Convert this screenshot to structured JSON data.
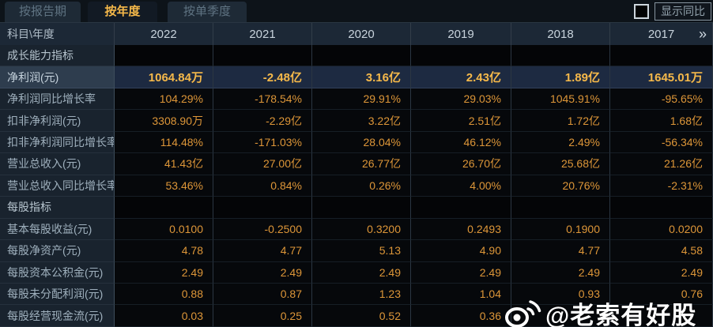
{
  "tabs": [
    {
      "label": "按报告期",
      "active": false
    },
    {
      "label": "按年度",
      "active": true
    },
    {
      "label": "按单季度",
      "active": false
    }
  ],
  "controls": {
    "show_yoy_label": "显示同比",
    "yoy_checkbox_checked": false
  },
  "table": {
    "corner_label": "科目\\年度",
    "years": [
      "2022",
      "2021",
      "2020",
      "2019",
      "2018",
      "2017"
    ],
    "more_icon": "»",
    "rows": [
      {
        "type": "section",
        "label": "成长能力指标",
        "values": [
          "",
          "",
          "",
          "",
          "",
          ""
        ]
      },
      {
        "type": "data",
        "label": "净利润(元)",
        "highlight": true,
        "values": [
          "1064.84万",
          "-2.48亿",
          "3.16亿",
          "2.43亿",
          "1.89亿",
          "1645.01万"
        ]
      },
      {
        "type": "data",
        "label": "净利润同比增长率",
        "values": [
          "104.29%",
          "-178.54%",
          "29.91%",
          "29.03%",
          "1045.91%",
          "-95.65%"
        ]
      },
      {
        "type": "data",
        "label": "扣非净利润(元)",
        "values": [
          "3308.90万",
          "-2.29亿",
          "3.22亿",
          "2.51亿",
          "1.72亿",
          "1.68亿"
        ]
      },
      {
        "type": "data",
        "label": "扣非净利润同比增长率",
        "values": [
          "114.48%",
          "-171.03%",
          "28.04%",
          "46.12%",
          "2.49%",
          "-56.34%"
        ]
      },
      {
        "type": "data",
        "label": "营业总收入(元)",
        "values": [
          "41.43亿",
          "27.00亿",
          "26.77亿",
          "26.70亿",
          "25.68亿",
          "21.26亿"
        ]
      },
      {
        "type": "data",
        "label": "营业总收入同比增长率",
        "values": [
          "53.46%",
          "0.84%",
          "0.26%",
          "4.00%",
          "20.76%",
          "-2.31%"
        ]
      },
      {
        "type": "section",
        "label": "每股指标",
        "values": [
          "",
          "",
          "",
          "",
          "",
          ""
        ]
      },
      {
        "type": "data",
        "label": "基本每股收益(元)",
        "values": [
          "0.0100",
          "-0.2500",
          "0.3200",
          "0.2493",
          "0.1900",
          "0.0200"
        ]
      },
      {
        "type": "data",
        "label": "每股净资产(元)",
        "values": [
          "4.78",
          "4.77",
          "5.13",
          "4.90",
          "4.77",
          "4.58"
        ]
      },
      {
        "type": "data",
        "label": "每股资本公积金(元)",
        "values": [
          "2.49",
          "2.49",
          "2.49",
          "2.49",
          "2.49",
          "2.49"
        ]
      },
      {
        "type": "data",
        "label": "每股未分配利润(元)",
        "values": [
          "0.88",
          "0.87",
          "1.23",
          "1.04",
          "0.93",
          "0.76"
        ]
      },
      {
        "type": "data",
        "label": "每股经营现金流(元)",
        "values": [
          "0.03",
          "0.25",
          "0.52",
          "0.36",
          "",
          ""
        ]
      }
    ]
  },
  "watermark": {
    "icon": "weibo-icon",
    "text": "@老索有好股"
  },
  "colors": {
    "accent_gold": "#f6b94a",
    "value_orange": "#dd9638",
    "highlight_row_bg": "#1d2a41",
    "tab_active_text": "#ffc636",
    "watermark_text": "#ffffff"
  }
}
